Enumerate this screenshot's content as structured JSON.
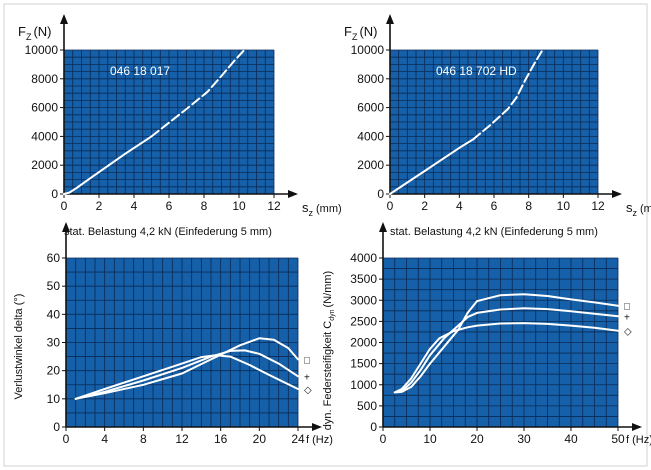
{
  "colors": {
    "plot_bg": "#1560a8",
    "grid": "#0b2a55",
    "curve": "#ffffff",
    "axis": "#111111",
    "frame": "#d0d0d0"
  },
  "chart_data": [
    {
      "type": "line",
      "series_label": "046 18 017",
      "ylabel_main": "F",
      "ylabel_sub": "Z",
      "ylabel_unit": "(N)",
      "xlabel_main": "s",
      "xlabel_sub": "z",
      "xlabel_unit": "(mm)",
      "caption": "stat. Belastung 4,2 kN (Einfederung 5 mm)",
      "xlim": [
        0,
        12
      ],
      "ylim": [
        0,
        10000
      ],
      "xticks": [
        "0",
        "2",
        "4",
        "6",
        "8",
        "10",
        "12"
      ],
      "yticks": [
        "0",
        "2000",
        "4000",
        "6000",
        "8000",
        "10000"
      ],
      "grid": true,
      "series": [
        {
          "style": "solid",
          "x": [
            0,
            0.3,
            0.7,
            1.5,
            2.5,
            3.5,
            4.5,
            5.0
          ],
          "y": [
            0,
            100,
            400,
            1100,
            1950,
            2800,
            3600,
            4000
          ]
        },
        {
          "style": "dashed",
          "x": [
            5.0,
            6.0,
            7.0,
            8.2,
            9.0,
            9.7,
            10.3
          ],
          "y": [
            4000,
            4950,
            5900,
            7100,
            8200,
            9200,
            10000
          ]
        }
      ]
    },
    {
      "type": "line",
      "series_label": "046 18 702 HD",
      "ylabel_main": "F",
      "ylabel_sub": "Z",
      "ylabel_unit": "(N)",
      "xlabel_main": "s",
      "xlabel_sub": "z",
      "xlabel_unit": "(mm)",
      "caption": "stat. Belastung 4,2 kN (Einfederung 5 mm)",
      "xlim": [
        0,
        12
      ],
      "ylim": [
        0,
        10000
      ],
      "xticks": [
        "0",
        "2",
        "4",
        "6",
        "8",
        "10",
        "12"
      ],
      "yticks": [
        "0",
        "2000",
        "4000",
        "6000",
        "8000",
        "10000"
      ],
      "grid": true,
      "series": [
        {
          "style": "solid",
          "x": [
            0,
            1,
            2,
            3,
            4,
            4.8
          ],
          "y": [
            0,
            800,
            1600,
            2400,
            3200,
            3800
          ]
        },
        {
          "style": "dashed",
          "x": [
            4.8,
            5.8,
            6.8,
            7.3,
            7.8,
            8.3,
            8.8
          ],
          "y": [
            3800,
            4800,
            5900,
            6700,
            7900,
            9000,
            10000
          ]
        }
      ]
    },
    {
      "type": "line",
      "ylabel": "Verlustwinkel delta (°)",
      "xlabel": "f (Hz)",
      "xlim": [
        0,
        24
      ],
      "ylim": [
        0,
        60
      ],
      "xticks": [
        "0",
        "4",
        "8",
        "12",
        "16",
        "20",
        "24"
      ],
      "yticks": [
        "0",
        "10",
        "20",
        "30",
        "40",
        "50",
        "60"
      ],
      "grid": true,
      "series": [
        {
          "marker": "□",
          "x": [
            1,
            4,
            8,
            12,
            15,
            18,
            20,
            21.5,
            23,
            24
          ],
          "y": [
            10,
            12,
            15,
            19,
            24,
            29,
            31.5,
            31,
            28,
            24
          ]
        },
        {
          "marker": "+",
          "x": [
            1,
            4,
            8,
            12,
            15,
            17,
            18.5,
            20,
            22,
            24
          ],
          "y": [
            10,
            12.5,
            16.5,
            21,
            25,
            27,
            27.2,
            26,
            22.5,
            18
          ]
        },
        {
          "marker": "◇",
          "x": [
            1,
            4,
            8,
            12,
            14,
            15.5,
            17,
            19,
            21,
            24
          ],
          "y": [
            10,
            13.5,
            18,
            22.5,
            24.8,
            25.5,
            25,
            22,
            18.5,
            13.5
          ]
        }
      ]
    },
    {
      "type": "line",
      "ylabel_main": "dyn. Federsteifigkeit C",
      "ylabel_sub": "dyn",
      "ylabel_unit": "(N/mm)",
      "xlabel": "f (Hz)",
      "xlim": [
        0,
        50
      ],
      "ylim": [
        0,
        4000
      ],
      "xticks": [
        "0",
        "10",
        "20",
        "30",
        "40",
        "50"
      ],
      "yticks": [
        "0",
        "500",
        "1000",
        "1500",
        "2000",
        "2500",
        "3000",
        "3500",
        "4000"
      ],
      "grid": true,
      "series": [
        {
          "marker": "□",
          "x": [
            2.5,
            4,
            6,
            8,
            10,
            13,
            16,
            18,
            20,
            25,
            30,
            35,
            40,
            45,
            50
          ],
          "y": [
            820,
            830,
            950,
            1200,
            1500,
            1900,
            2300,
            2700,
            2980,
            3120,
            3140,
            3100,
            3020,
            2950,
            2870
          ]
        },
        {
          "marker": "+",
          "x": [
            2.5,
            4,
            6,
            8,
            10,
            13,
            16,
            18,
            20,
            25,
            30,
            35,
            40,
            45,
            50
          ],
          "y": [
            820,
            850,
            1050,
            1350,
            1700,
            2100,
            2400,
            2600,
            2700,
            2780,
            2810,
            2790,
            2740,
            2680,
            2620
          ]
        },
        {
          "marker": "◇",
          "x": [
            2.5,
            4,
            6,
            8,
            10,
            12,
            15,
            18,
            20,
            25,
            30,
            35,
            40,
            45,
            50
          ],
          "y": [
            820,
            900,
            1150,
            1500,
            1850,
            2100,
            2270,
            2360,
            2400,
            2450,
            2460,
            2440,
            2400,
            2350,
            2280
          ]
        }
      ]
    }
  ]
}
